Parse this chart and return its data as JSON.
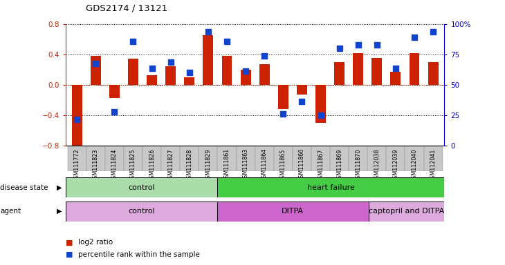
{
  "title": "GDS2174 / 13121",
  "samples": [
    "GSM111772",
    "GSM111823",
    "GSM111824",
    "GSM111825",
    "GSM111826",
    "GSM111827",
    "GSM111828",
    "GSM111829",
    "GSM111861",
    "GSM111863",
    "GSM111864",
    "GSM111865",
    "GSM111866",
    "GSM111867",
    "GSM111869",
    "GSM111870",
    "GSM112038",
    "GSM112039",
    "GSM112040",
    "GSM112041"
  ],
  "log2_ratio": [
    -0.82,
    0.38,
    -0.17,
    0.34,
    0.13,
    0.24,
    0.1,
    0.65,
    0.38,
    0.2,
    0.27,
    -0.32,
    -0.13,
    -0.5,
    0.3,
    0.42,
    0.35,
    0.17,
    0.42,
    0.3
  ],
  "percentile_left_scale": [
    -0.45,
    0.28,
    -0.35,
    0.57,
    0.22,
    0.3,
    0.16,
    0.7,
    0.57,
    0.18,
    0.38,
    -0.38,
    -0.22,
    -0.4,
    0.48,
    0.52,
    0.52,
    0.22,
    0.62,
    0.7
  ],
  "disease_state_groups": [
    {
      "label": "control",
      "start": 0,
      "end": 7,
      "color": "#aaddaa"
    },
    {
      "label": "heart failure",
      "start": 8,
      "end": 19,
      "color": "#44cc44"
    }
  ],
  "agent_groups": [
    {
      "label": "control",
      "start": 0,
      "end": 7,
      "color": "#ddaadd"
    },
    {
      "label": "DITPA",
      "start": 8,
      "end": 15,
      "color": "#cc66cc"
    },
    {
      "label": "captopril and DITPA",
      "start": 16,
      "end": 19,
      "color": "#ddaadd"
    }
  ],
  "bar_color": "#cc2200",
  "dot_color": "#1144cc",
  "ylim_left": [
    -0.8,
    0.8
  ],
  "ylim_right": [
    0,
    100
  ],
  "yticks_left": [
    -0.8,
    -0.4,
    0.0,
    0.4,
    0.8
  ],
  "yticks_right": [
    0,
    25,
    50,
    75,
    100
  ],
  "bar_width": 0.55,
  "dot_size": 28,
  "left_color": "#cc2200",
  "right_color": "#0000cc"
}
